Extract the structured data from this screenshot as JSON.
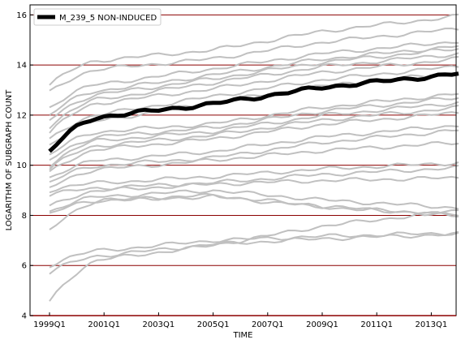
{
  "chart_data": {
    "type": "line",
    "title": "",
    "xlabel": "TIME",
    "ylabel": "LOGARITHM OF SUBGRAPH COUNT",
    "ylim": [
      4,
      16.4
    ],
    "y_ticks": [
      4,
      6,
      8,
      10,
      12,
      14,
      16
    ],
    "x_start": "1999Q1",
    "x_end": "2014Q1",
    "x_ticks": [
      "1999Q1",
      "2001Q1",
      "2003Q1",
      "2005Q1",
      "2007Q1",
      "2009Q1",
      "2011Q1",
      "2013Q1"
    ],
    "grid": "horizontal-major",
    "grid_color": "#8b0000",
    "background_color": "#c0c0c0",
    "highlight_color": "#000000",
    "legend": {
      "placement": "top-left",
      "label": "M_239_5 NON-INDUCED"
    },
    "highlight_series": {
      "name": "M_239_5 NON-INDUCED",
      "start": 10.55,
      "d2001": 11.95,
      "d2005": 12.45,
      "end": 13.65
    },
    "background_series": [
      {
        "start": 13.2,
        "d2001": 14.2,
        "d2005": 14.6,
        "end": 15.95
      },
      {
        "start": 12.9,
        "d2001": 13.85,
        "d2005": 14.25,
        "end": 15.45
      },
      {
        "start": 12.3,
        "d2001": 13.25,
        "d2005": 13.85,
        "end": 14.95
      },
      {
        "start": 12.0,
        "d2001": 13.0,
        "d2005": 13.6,
        "end": 14.75
      },
      {
        "start": 11.8,
        "d2001": 12.85,
        "d2005": 13.45,
        "end": 14.65
      },
      {
        "start": 11.55,
        "d2001": 12.65,
        "d2005": 13.3,
        "end": 14.45
      },
      {
        "start": 11.3,
        "d2001": 12.5,
        "d2005": 13.05,
        "end": 14.25
      },
      {
        "start": 11.0,
        "d2001": 12.05,
        "d2005": 12.75,
        "end": 13.95
      },
      {
        "start": 10.8,
        "d2001": 11.8,
        "d2005": 12.5,
        "end": 13.7
      },
      {
        "start": 10.4,
        "d2001": 11.35,
        "d2005": 11.65,
        "end": 12.85
      },
      {
        "start": 10.2,
        "d2001": 11.15,
        "d2005": 11.5,
        "end": 12.7
      },
      {
        "start": 10.0,
        "d2001": 11.0,
        "d2005": 11.35,
        "end": 12.5
      },
      {
        "start": 9.85,
        "d2001": 10.8,
        "d2005": 11.2,
        "end": 12.3
      },
      {
        "start": 9.7,
        "d2001": 10.65,
        "d2005": 11.05,
        "end": 12.1
      },
      {
        "start": 9.5,
        "d2001": 10.2,
        "d2005": 10.55,
        "end": 11.6
      },
      {
        "start": 9.3,
        "d2001": 10.0,
        "d2005": 10.3,
        "end": 11.4
      },
      {
        "start": 9.1,
        "d2001": 9.85,
        "d2005": 10.2,
        "end": 10.9
      },
      {
        "start": 9.0,
        "d2001": 9.3,
        "d2005": 9.55,
        "end": 10.1
      },
      {
        "start": 8.8,
        "d2001": 9.1,
        "d2005": 9.3,
        "end": 9.9
      },
      {
        "start": 8.35,
        "d2001": 9.0,
        "d2005": 9.25,
        "end": 9.5
      },
      {
        "start": 8.15,
        "d2001": 8.75,
        "d2005": 9.0,
        "end": 8.3
      },
      {
        "start": 8.05,
        "d2001": 8.6,
        "d2005": 8.75,
        "end": 8.0
      },
      {
        "start": 7.4,
        "d2001": 8.6,
        "d2005": 8.8,
        "end": 8.0
      },
      {
        "start": 6.0,
        "d2001": 6.6,
        "d2005": 7.0,
        "end": 7.3
      },
      {
        "start": 5.7,
        "d2001": 6.4,
        "d2005": 6.85,
        "end": 7.25
      },
      {
        "start": 4.55,
        "d2001": 6.25,
        "d2005": 6.8,
        "end": 8.2
      }
    ]
  }
}
